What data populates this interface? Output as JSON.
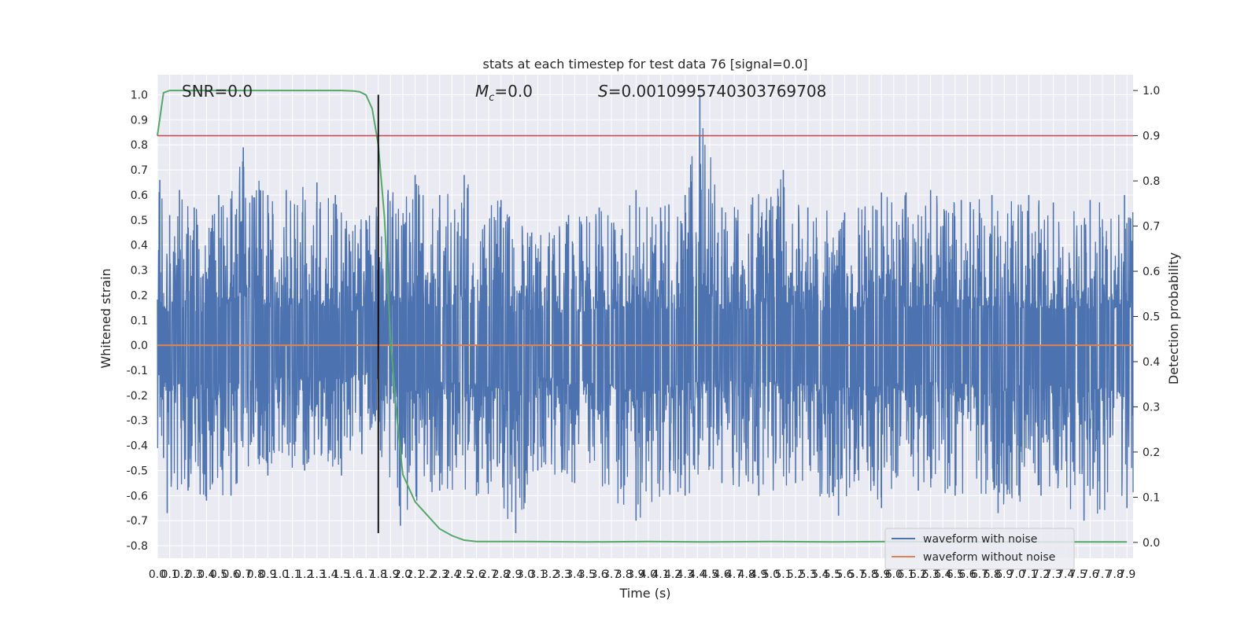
{
  "chart_data": {
    "type": "line",
    "title": "stats at each timestep for test data 76 [signal=0.0]",
    "xlabel": "Time (s)",
    "ylabel": "Whitened strain",
    "y2label": "Detection probability",
    "xlim": [
      0.0,
      7.95
    ],
    "ylim": [
      -0.85,
      1.08
    ],
    "y2lim": [
      -0.035,
      1.035
    ],
    "x_ticks": [
      0.0,
      0.1,
      0.2,
      0.3,
      0.4,
      0.5,
      0.6,
      0.7,
      0.8,
      0.9,
      1.0,
      1.1,
      1.2,
      1.3,
      1.4,
      1.5,
      1.6,
      1.7,
      1.8,
      1.9,
      2.0,
      2.1,
      2.2,
      2.3,
      2.4,
      2.5,
      2.6,
      2.7,
      2.8,
      2.9,
      3.0,
      3.1,
      3.2,
      3.3,
      3.4,
      3.5,
      3.6,
      3.7,
      3.8,
      3.9,
      4.0,
      4.1,
      4.2,
      4.3,
      4.4,
      4.5,
      4.6,
      4.7,
      4.8,
      4.9,
      5.0,
      5.1,
      5.2,
      5.3,
      5.4,
      5.5,
      5.6,
      5.7,
      5.8,
      5.9,
      6.0,
      6.1,
      6.2,
      6.3,
      6.4,
      6.5,
      6.6,
      6.7,
      6.8,
      6.9,
      7.0,
      7.1,
      7.2,
      7.3,
      7.4,
      7.5,
      7.6,
      7.7,
      7.8,
      7.9
    ],
    "y_ticks": [
      -0.8,
      -0.7,
      -0.6,
      -0.5,
      -0.4,
      -0.3,
      -0.2,
      -0.1,
      0.0,
      0.1,
      0.2,
      0.3,
      0.4,
      0.5,
      0.6,
      0.7,
      0.8,
      0.9,
      1.0
    ],
    "y2_ticks": [
      0.0,
      0.1,
      0.2,
      0.3,
      0.4,
      0.5,
      0.6,
      0.7,
      0.8,
      0.9,
      1.0
    ],
    "grid": true,
    "legend_position": "lower-right",
    "annotations": {
      "snr": "SNR=0.0",
      "mc": "M",
      "mc_sub": "c",
      "mc_val": "=0.0",
      "s_sym": "S",
      "s_val": "=0.0010995740303769708"
    },
    "series": [
      {
        "name": "waveform with noise",
        "axis": "left",
        "color": "#4c72b0",
        "note": "dense noise trace; envelope peaks listed as [time, value]",
        "peaks_pos": [
          [
            0.02,
            0.66
          ],
          [
            0.1,
            0.52
          ],
          [
            0.18,
            0.62
          ],
          [
            0.3,
            0.55
          ],
          [
            0.45,
            0.52
          ],
          [
            0.5,
            0.6
          ],
          [
            0.7,
            0.79
          ],
          [
            0.9,
            0.6
          ],
          [
            1.05,
            0.62
          ],
          [
            1.3,
            0.65
          ],
          [
            1.45,
            0.6
          ],
          [
            1.7,
            0.5
          ],
          [
            1.88,
            0.62
          ],
          [
            2.1,
            0.68
          ],
          [
            2.3,
            0.6
          ],
          [
            2.5,
            0.68
          ],
          [
            2.8,
            0.58
          ],
          [
            3.05,
            0.45
          ],
          [
            3.35,
            0.52
          ],
          [
            3.6,
            0.55
          ],
          [
            3.9,
            0.62
          ],
          [
            4.1,
            0.55
          ],
          [
            4.3,
            0.6
          ],
          [
            4.42,
            1.0
          ],
          [
            4.6,
            0.55
          ],
          [
            4.85,
            0.59
          ],
          [
            5.1,
            0.7
          ],
          [
            5.3,
            0.55
          ],
          [
            5.6,
            0.53
          ],
          [
            5.9,
            0.61
          ],
          [
            6.1,
            0.61
          ],
          [
            6.3,
            0.62
          ],
          [
            6.55,
            0.58
          ],
          [
            6.8,
            0.6
          ],
          [
            7.1,
            0.6
          ],
          [
            7.3,
            0.57
          ],
          [
            7.6,
            0.58
          ],
          [
            7.88,
            0.6
          ]
        ],
        "peaks_neg": [
          [
            0.05,
            -0.45
          ],
          [
            0.08,
            -0.67
          ],
          [
            0.25,
            -0.58
          ],
          [
            0.4,
            -0.62
          ],
          [
            0.6,
            -0.6
          ],
          [
            0.9,
            -0.52
          ],
          [
            1.2,
            -0.5
          ],
          [
            1.5,
            -0.52
          ],
          [
            1.8,
            -0.4
          ],
          [
            1.98,
            -0.72
          ],
          [
            2.3,
            -0.58
          ],
          [
            2.6,
            -0.6
          ],
          [
            2.92,
            -0.75
          ],
          [
            3.1,
            -0.5
          ],
          [
            3.4,
            -0.55
          ],
          [
            3.9,
            -0.7
          ],
          [
            4.3,
            -0.6
          ],
          [
            4.6,
            -0.55
          ],
          [
            4.9,
            -0.6
          ],
          [
            5.2,
            -0.55
          ],
          [
            5.55,
            -0.68
          ],
          [
            5.9,
            -0.65
          ],
          [
            6.2,
            -0.58
          ],
          [
            6.5,
            -0.6
          ],
          [
            6.85,
            -0.67
          ],
          [
            7.2,
            -0.6
          ],
          [
            7.55,
            -0.7
          ],
          [
            7.9,
            -0.65
          ]
        ]
      },
      {
        "name": "waveform without noise",
        "axis": "left",
        "color": "#dd8452",
        "x": [
          0.0,
          7.95
        ],
        "y": [
          0.0,
          0.0
        ]
      },
      {
        "name": "",
        "axis": "right",
        "color": "#55a868",
        "x": [
          0.0,
          0.05,
          0.1,
          0.2,
          0.5,
          1.0,
          1.5,
          1.6,
          1.65,
          1.7,
          1.75,
          1.8,
          1.85,
          1.9,
          1.95,
          2.0,
          2.1,
          2.2,
          2.3,
          2.4,
          2.5,
          2.6,
          3.0,
          3.5,
          4.0,
          4.5,
          5.0,
          5.5,
          6.0,
          6.5,
          7.0,
          7.5,
          7.9
        ],
        "y": [
          0.9,
          0.995,
          1.0,
          1.0,
          1.0,
          1.0,
          1.0,
          0.999,
          0.997,
          0.99,
          0.96,
          0.88,
          0.72,
          0.45,
          0.28,
          0.15,
          0.09,
          0.06,
          0.03,
          0.015,
          0.005,
          0.002,
          0.002,
          0.001,
          0.002,
          0.001,
          0.002,
          0.001,
          0.002,
          0.001,
          0.001,
          0.001,
          0.001
        ]
      },
      {
        "name": "",
        "axis": "right",
        "color": "#c44e52",
        "x": [
          0.0,
          7.95
        ],
        "y": [
          0.9,
          0.9
        ]
      }
    ],
    "vertical_line": {
      "x": 1.8,
      "y_from": -0.75,
      "y_to": 1.0,
      "color": "#000000"
    }
  }
}
